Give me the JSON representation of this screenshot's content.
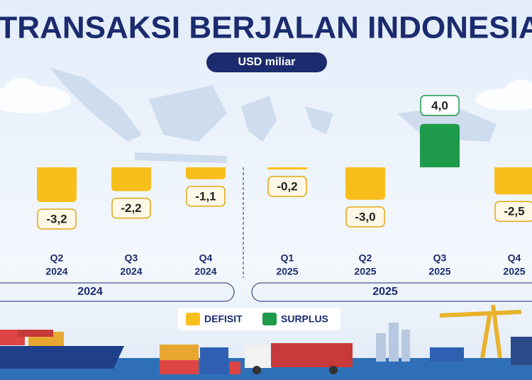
{
  "chart_data": {
    "type": "bar",
    "title": "TRANSAKSI BERJALAN INDONESIA",
    "subtitle": "USD miliar",
    "categories": [
      [
        "Q2",
        "2024"
      ],
      [
        "Q3",
        "2024"
      ],
      [
        "Q4",
        "2024"
      ],
      [
        "Q1",
        "2025"
      ],
      [
        "Q2",
        "2025"
      ],
      [
        "Q3",
        "2025"
      ],
      [
        "Q4",
        "2025"
      ]
    ],
    "values": [
      -3.2,
      -2.2,
      -1.1,
      -0.2,
      -3.0,
      4.0,
      -2.5
    ],
    "value_labels": [
      "-3,2",
      "-2,2",
      "-1,1",
      "-0,2",
      "-3,0",
      "4,0",
      "-2,5"
    ],
    "groups": [
      {
        "label": "2024"
      },
      {
        "label": "2025"
      }
    ],
    "legend": [
      {
        "label": "DEFISIT",
        "color": "#f8bf1c"
      },
      {
        "label": "SURPLUS",
        "color": "#1e9a4b"
      }
    ]
  }
}
